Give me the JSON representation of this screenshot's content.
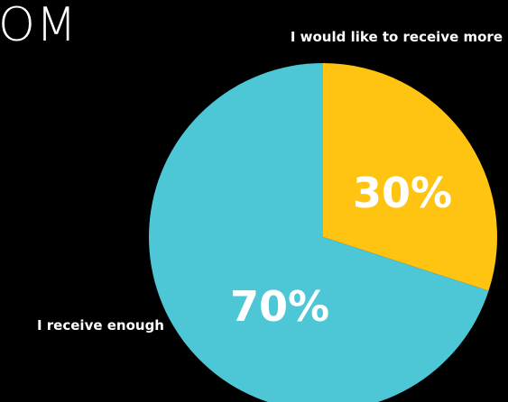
{
  "header": {
    "title_fragment": "OM"
  },
  "chart_data": {
    "type": "pie",
    "title": "",
    "slices": [
      {
        "label": "I would like to receive more",
        "value": 30,
        "value_label": "30%",
        "color": "#FFC311"
      },
      {
        "label": "I receive enough",
        "value": 70,
        "value_label": "70%",
        "color": "#4DC6D6"
      }
    ],
    "background_color": "#000000",
    "text_color": "#FFFFFF"
  }
}
